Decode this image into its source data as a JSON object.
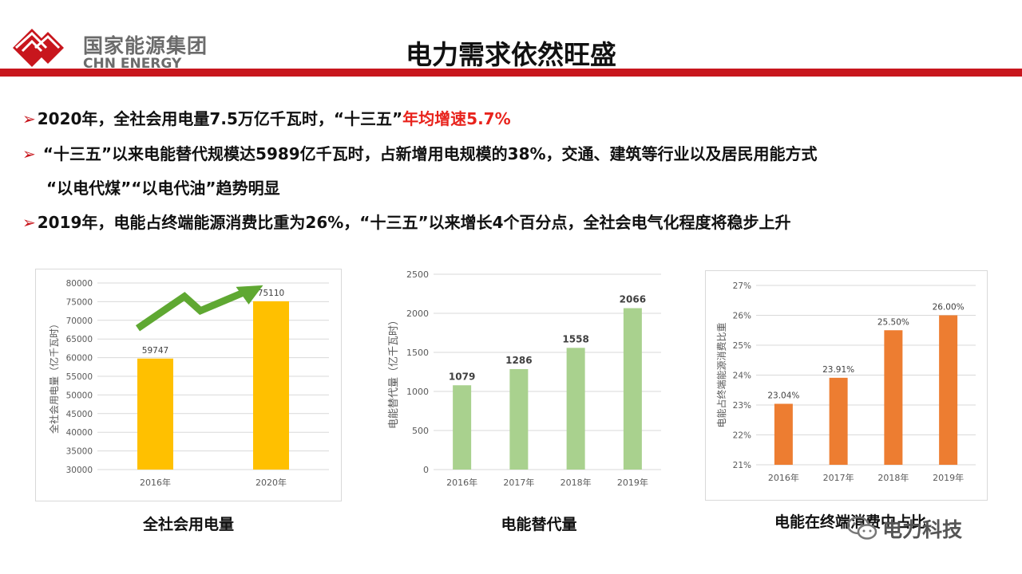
{
  "header": {
    "logo_cn": "国家能源集团",
    "logo_en": "CHN ENERGY",
    "title": "电力需求依然旺盛"
  },
  "bullets": {
    "b1_main": "2020年，全社会用电量7.5万亿千瓦时，“十三五”",
    "b1_highlight": "年均增速5.7%",
    "b2_line1": "“十三五”以来电能替代规模达5989亿千瓦时，占新增用电规模的38%，交通、建筑等行业以及居民用能方式",
    "b2_line2": "“以电代煤”“以电代油”趋势明显",
    "b3": "2019年，电能占终端能源消费比重为26%，“十三五”以来增长4个百分点，全社会电气化程度将稳步上升"
  },
  "colors": {
    "brand_red": "#c8161d",
    "highlight_red": "#e8231c",
    "bar_gold": "#ffc000",
    "bar_green": "#a9d18e",
    "bar_orange": "#ed7d31",
    "arrow_green": "#5fa832"
  },
  "chart_data": [
    {
      "type": "bar",
      "categories": [
        "2016年",
        "2020年"
      ],
      "values": [
        59747,
        75110
      ],
      "value_labels": [
        "59747",
        "75110"
      ],
      "ylabel": "全社会用电量（亿千瓦时）",
      "ylim": [
        30000,
        80000
      ],
      "yticks": [
        30000,
        35000,
        40000,
        45000,
        50000,
        55000,
        60000,
        65000,
        70000,
        75000,
        80000
      ],
      "caption": "全社会用电量",
      "grid": true,
      "annotation": "green-up-arrow"
    },
    {
      "type": "bar",
      "categories": [
        "2016年",
        "2017年",
        "2018年",
        "2019年"
      ],
      "values": [
        1079,
        1286,
        1558,
        2066
      ],
      "value_labels": [
        "1079",
        "1286",
        "1558",
        "2066"
      ],
      "ylabel": "电能替代量（亿千瓦时）",
      "ylim": [
        0,
        2500
      ],
      "yticks": [
        0,
        500,
        1000,
        1500,
        2000,
        2500
      ],
      "caption": "电能替代量",
      "grid": true
    },
    {
      "type": "bar",
      "categories": [
        "2016年",
        "2017年",
        "2018年",
        "2019年"
      ],
      "values": [
        23.04,
        23.91,
        25.5,
        26.0
      ],
      "value_labels": [
        "23.04%",
        "23.91%",
        "25.50%",
        "26.00%"
      ],
      "ylabel": "电能占终端能源消费比重",
      "ylim": [
        21,
        27
      ],
      "yticks": [
        21,
        22,
        23,
        24,
        25,
        26,
        27
      ],
      "ytick_labels": [
        "21%",
        "22%",
        "23%",
        "24%",
        "25%",
        "26%",
        "27%"
      ],
      "caption": "电能在终端消费中占比",
      "grid": true
    }
  ],
  "watermark": {
    "text": "电力科技"
  }
}
